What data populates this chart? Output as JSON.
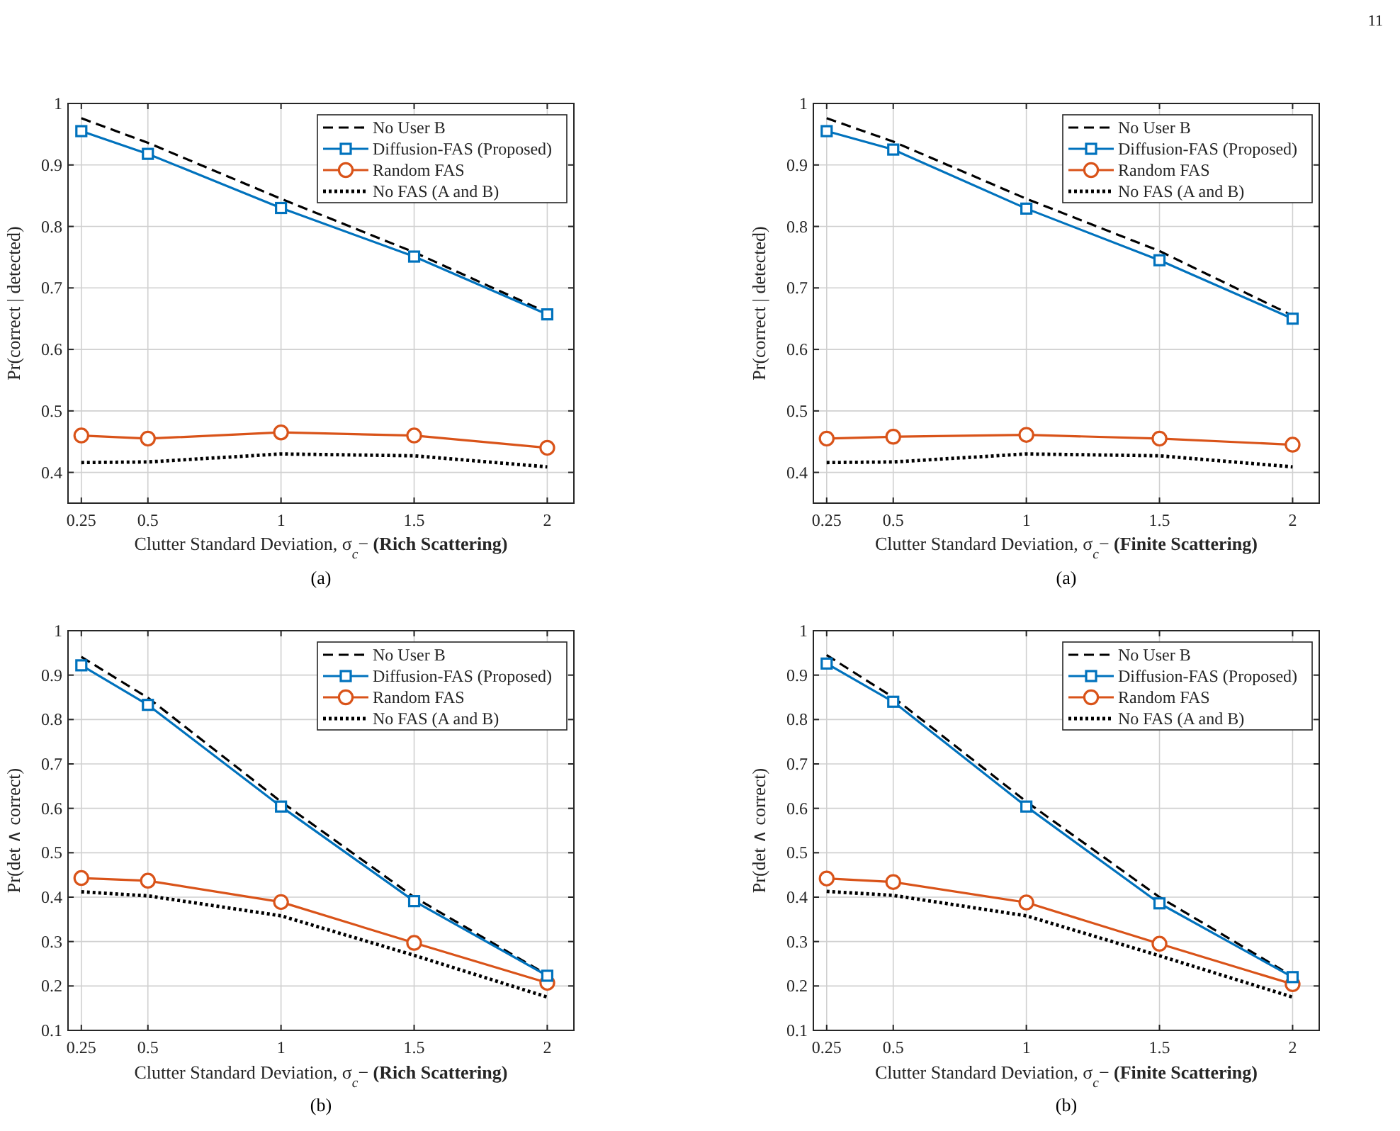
{
  "chart_data": [
    {
      "type": "line",
      "xlabel": "Clutter Standard Deviation, σ$_{c}$− (Rich Scattering)",
      "ylabel": "Pr(correct | detected)",
      "x": [
        0.25,
        0.5,
        1,
        1.5,
        2
      ],
      "xlim": [
        0.2,
        2.1
      ],
      "ylim": [
        0.35,
        1
      ],
      "xticks": [
        0.25,
        0.5,
        1,
        1.5,
        2
      ],
      "yticks": [
        0.4,
        0.5,
        0.6,
        0.7,
        0.8,
        0.9,
        1
      ],
      "grid": true,
      "legend": "top right",
      "annotations": [
        "11",
        "(a)"
      ],
      "series": [
        {
          "name": "No User B",
          "color": "#000000",
          "line_style": "dashed",
          "marker": "none",
          "values": [
            0.976,
            0.936,
            0.845,
            0.758,
            0.66
          ]
        },
        {
          "name": "Diffusion-FAS (Proposed)",
          "color": "#0072bd",
          "line_style": "solid",
          "marker": "square",
          "values": [
            0.955,
            0.918,
            0.83,
            0.751,
            0.657
          ]
        },
        {
          "name": "Random FAS",
          "color": "#d95319",
          "line_style": "solid",
          "marker": "circle",
          "values": [
            0.46,
            0.455,
            0.465,
            0.46,
            0.44
          ]
        },
        {
          "name": "No FAS (A and B)",
          "color": "#000000",
          "line_style": "dotted",
          "marker": "none",
          "values": [
            0.416,
            0.417,
            0.43,
            0.427,
            0.409
          ]
        }
      ]
    },
    {
      "type": "line",
      "xlabel": "Clutter Standard Deviation, σ$_{c}$− (Finite Scattering)",
      "ylabel": "Pr(correct | detected)",
      "x": [
        0.25,
        0.5,
        1,
        1.5,
        2
      ],
      "xlim": [
        0.2,
        2.1
      ],
      "ylim": [
        0.35,
        1
      ],
      "xticks": [
        0.25,
        0.5,
        1,
        1.5,
        2
      ],
      "yticks": [
        0.4,
        0.5,
        0.6,
        0.7,
        0.8,
        0.9,
        1
      ],
      "grid": true,
      "legend": "top right",
      "annotations": [
        "(a)"
      ],
      "series": [
        {
          "name": "No User B",
          "color": "#000000",
          "line_style": "dashed",
          "marker": "none",
          "values": [
            0.976,
            0.938,
            0.845,
            0.76,
            0.655
          ]
        },
        {
          "name": "Diffusion-FAS (Proposed)",
          "color": "#0072bd",
          "line_style": "solid",
          "marker": "square",
          "values": [
            0.955,
            0.925,
            0.829,
            0.745,
            0.65
          ]
        },
        {
          "name": "Random FAS",
          "color": "#d95319",
          "line_style": "solid",
          "marker": "circle",
          "values": [
            0.455,
            0.458,
            0.461,
            0.455,
            0.445
          ]
        },
        {
          "name": "No FAS (A and B)",
          "color": "#000000",
          "line_style": "dotted",
          "marker": "none",
          "values": [
            0.416,
            0.417,
            0.43,
            0.427,
            0.409
          ]
        }
      ]
    },
    {
      "type": "line",
      "xlabel": "Clutter Standard Deviation, σ$_{c}$− (Rich Scattering)",
      "ylabel": "Pr(det ∧ correct)",
      "x": [
        0.25,
        0.5,
        1,
        1.5,
        2
      ],
      "xlim": [
        0.2,
        2.1
      ],
      "ylim": [
        0.1,
        1
      ],
      "xticks": [
        0.25,
        0.5,
        1,
        1.5,
        2
      ],
      "yticks": [
        0.1,
        0.2,
        0.3,
        0.4,
        0.5,
        0.6,
        0.7,
        0.8,
        0.9,
        1
      ],
      "grid": true,
      "legend": "top right",
      "annotations": [
        "(b)"
      ],
      "series": [
        {
          "name": "No User B",
          "color": "#000000",
          "line_style": "dashed",
          "marker": "none",
          "values": [
            0.941,
            0.849,
            0.615,
            0.4,
            0.225
          ]
        },
        {
          "name": "Diffusion-FAS (Proposed)",
          "color": "#0072bd",
          "line_style": "solid",
          "marker": "square",
          "values": [
            0.922,
            0.833,
            0.604,
            0.391,
            0.223
          ]
        },
        {
          "name": "Random FAS",
          "color": "#d95319",
          "line_style": "solid",
          "marker": "circle",
          "values": [
            0.443,
            0.437,
            0.389,
            0.297,
            0.207
          ]
        },
        {
          "name": "No FAS (A and B)",
          "color": "#000000",
          "line_style": "dotted",
          "marker": "none",
          "values": [
            0.412,
            0.403,
            0.358,
            0.269,
            0.175
          ]
        }
      ]
    },
    {
      "type": "line",
      "xlabel": "Clutter Standard Deviation, σ$_{c}$− (Finite Scattering)",
      "ylabel": "Pr(det ∧ correct)",
      "x": [
        0.25,
        0.5,
        1,
        1.5,
        2
      ],
      "xlim": [
        0.2,
        2.1
      ],
      "ylim": [
        0.1,
        1
      ],
      "xticks": [
        0.25,
        0.5,
        1,
        1.5,
        2
      ],
      "yticks": [
        0.1,
        0.2,
        0.3,
        0.4,
        0.5,
        0.6,
        0.7,
        0.8,
        0.9,
        1
      ],
      "grid": true,
      "legend": "top right",
      "annotations": [
        "(b)"
      ],
      "series": [
        {
          "name": "No User B",
          "color": "#000000",
          "line_style": "dashed",
          "marker": "none",
          "values": [
            0.945,
            0.85,
            0.615,
            0.4,
            0.222
          ]
        },
        {
          "name": "Diffusion-FAS (Proposed)",
          "color": "#0072bd",
          "line_style": "solid",
          "marker": "square",
          "values": [
            0.926,
            0.84,
            0.604,
            0.386,
            0.22
          ]
        },
        {
          "name": "Random FAS",
          "color": "#d95319",
          "line_style": "solid",
          "marker": "circle",
          "values": [
            0.442,
            0.434,
            0.388,
            0.295,
            0.204
          ]
        },
        {
          "name": "No FAS (A and B)",
          "color": "#000000",
          "line_style": "dotted",
          "marker": "none",
          "values": [
            0.413,
            0.404,
            0.358,
            0.268,
            0.175
          ]
        }
      ]
    }
  ]
}
